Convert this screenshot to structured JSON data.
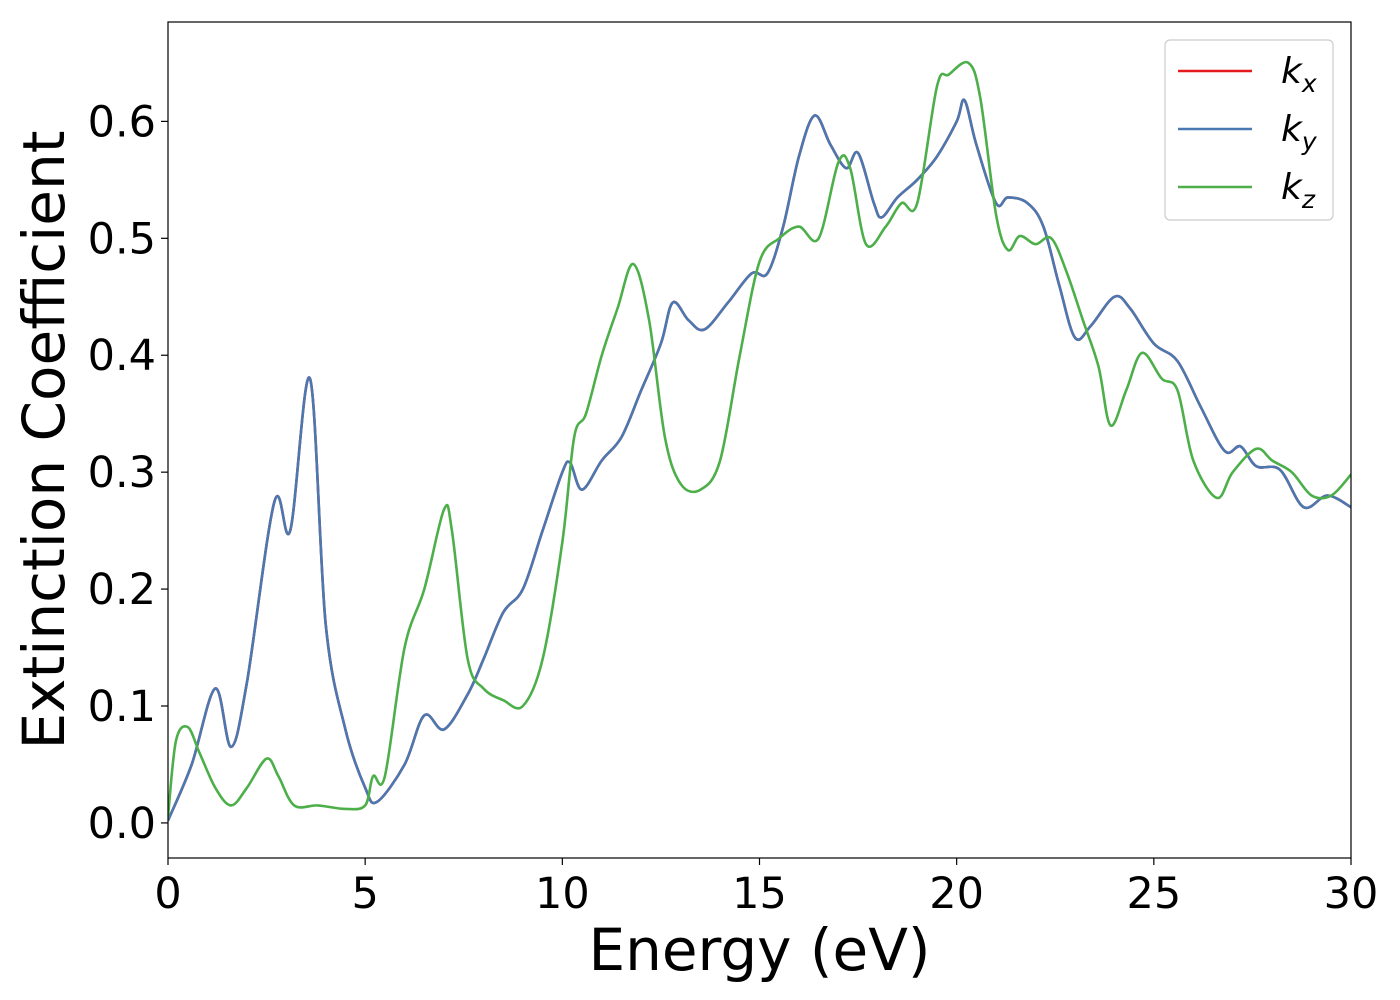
{
  "chart_data": {
    "type": "line",
    "title": "",
    "xlabel": "Energy (eV)",
    "ylabel": "Extinction Coefficient",
    "xlim": [
      0,
      30
    ],
    "ylim": [
      -0.03,
      0.685
    ],
    "xticks": [
      0,
      5,
      10,
      15,
      20,
      25,
      30
    ],
    "xtick_labels": [
      "0",
      "5",
      "10",
      "15",
      "20",
      "25",
      "30"
    ],
    "yticks": [
      0.0,
      0.1,
      0.2,
      0.3,
      0.4,
      0.5,
      0.6
    ],
    "ytick_labels": [
      "0.0",
      "0.1",
      "0.2",
      "0.3",
      "0.4",
      "0.5",
      "0.6"
    ],
    "grid": false,
    "legend": {
      "placement": "top-right",
      "entries": [
        {
          "base": "k",
          "sub": "x",
          "color": "#e41a1c"
        },
        {
          "base": "k",
          "sub": "y",
          "color": "#4a78b0"
        },
        {
          "base": "k",
          "sub": "z",
          "color": "#4daf4a"
        }
      ]
    },
    "series": [
      {
        "name": "kx",
        "color": "#e41a1c",
        "x": [
          0,
          0.6,
          1.2,
          1.6,
          2.0,
          2.7,
          3.1,
          3.6,
          4.0,
          4.5,
          5.0,
          5.3,
          6.0,
          6.5,
          7.0,
          7.6,
          8.0,
          8.5,
          9.0,
          9.5,
          10.0,
          10.2,
          10.5,
          11.0,
          11.5,
          12.0,
          12.5,
          12.8,
          13.2,
          13.6,
          14.2,
          14.8,
          15.2,
          15.6,
          16.0,
          16.4,
          16.8,
          17.2,
          17.5,
          17.9,
          18.1,
          18.5,
          19.0,
          19.5,
          20.0,
          20.2,
          20.5,
          21.0,
          21.3,
          21.8,
          22.2,
          22.6,
          23.0,
          23.4,
          24.0,
          24.4,
          25.0,
          25.6,
          26.2,
          26.8,
          27.2,
          27.6,
          28.2,
          28.8,
          29.4,
          30.0
        ],
        "y": [
          0.002,
          0.05,
          0.115,
          0.065,
          0.12,
          0.275,
          0.25,
          0.38,
          0.17,
          0.08,
          0.03,
          0.018,
          0.05,
          0.092,
          0.08,
          0.11,
          0.14,
          0.18,
          0.2,
          0.25,
          0.3,
          0.308,
          0.285,
          0.31,
          0.33,
          0.37,
          0.41,
          0.445,
          0.43,
          0.422,
          0.445,
          0.47,
          0.47,
          0.51,
          0.57,
          0.605,
          0.58,
          0.56,
          0.573,
          0.53,
          0.518,
          0.535,
          0.55,
          0.57,
          0.6,
          0.618,
          0.58,
          0.53,
          0.535,
          0.53,
          0.51,
          0.46,
          0.415,
          0.425,
          0.45,
          0.44,
          0.41,
          0.395,
          0.355,
          0.318,
          0.322,
          0.305,
          0.302,
          0.27,
          0.28,
          0.27
        ]
      },
      {
        "name": "ky",
        "color": "#4a78b0",
        "x": [
          0,
          0.6,
          1.2,
          1.6,
          2.0,
          2.7,
          3.1,
          3.6,
          4.0,
          4.5,
          5.0,
          5.3,
          6.0,
          6.5,
          7.0,
          7.6,
          8.0,
          8.5,
          9.0,
          9.5,
          10.0,
          10.2,
          10.5,
          11.0,
          11.5,
          12.0,
          12.5,
          12.8,
          13.2,
          13.6,
          14.2,
          14.8,
          15.2,
          15.6,
          16.0,
          16.4,
          16.8,
          17.2,
          17.5,
          17.9,
          18.1,
          18.5,
          19.0,
          19.5,
          20.0,
          20.2,
          20.5,
          21.0,
          21.3,
          21.8,
          22.2,
          22.6,
          23.0,
          23.4,
          24.0,
          24.4,
          25.0,
          25.6,
          26.2,
          26.8,
          27.2,
          27.6,
          28.2,
          28.8,
          29.4,
          30.0
        ],
        "y": [
          0.002,
          0.05,
          0.115,
          0.065,
          0.12,
          0.275,
          0.25,
          0.38,
          0.17,
          0.08,
          0.03,
          0.018,
          0.05,
          0.092,
          0.08,
          0.11,
          0.14,
          0.18,
          0.2,
          0.25,
          0.3,
          0.308,
          0.285,
          0.31,
          0.33,
          0.37,
          0.41,
          0.445,
          0.43,
          0.422,
          0.445,
          0.47,
          0.47,
          0.51,
          0.57,
          0.605,
          0.58,
          0.56,
          0.573,
          0.53,
          0.518,
          0.535,
          0.55,
          0.57,
          0.6,
          0.618,
          0.58,
          0.53,
          0.535,
          0.53,
          0.51,
          0.46,
          0.415,
          0.425,
          0.45,
          0.44,
          0.41,
          0.395,
          0.355,
          0.318,
          0.322,
          0.305,
          0.302,
          0.27,
          0.28,
          0.27
        ]
      },
      {
        "name": "kz",
        "color": "#4daf4a",
        "x": [
          0,
          0.2,
          0.5,
          0.8,
          1.2,
          1.6,
          2.0,
          2.5,
          2.8,
          3.2,
          3.8,
          4.5,
          5.0,
          5.2,
          5.5,
          6.0,
          6.5,
          7.0,
          7.2,
          7.6,
          8.0,
          8.5,
          9.0,
          9.5,
          10.0,
          10.3,
          10.6,
          11.0,
          11.4,
          11.8,
          12.2,
          12.6,
          13.0,
          13.5,
          14.0,
          14.5,
          15.0,
          15.5,
          16.0,
          16.5,
          17.0,
          17.3,
          17.7,
          18.2,
          18.6,
          19.0,
          19.5,
          19.8,
          20.3,
          20.6,
          21.0,
          21.3,
          21.6,
          22.0,
          22.4,
          22.8,
          23.2,
          23.6,
          23.9,
          24.3,
          24.7,
          25.2,
          25.6,
          26.0,
          26.6,
          27.0,
          27.6,
          28.0,
          28.5,
          29.0,
          29.5,
          30.0
        ],
        "y": [
          0.005,
          0.07,
          0.082,
          0.06,
          0.03,
          0.015,
          0.03,
          0.055,
          0.04,
          0.015,
          0.015,
          0.012,
          0.015,
          0.04,
          0.04,
          0.15,
          0.2,
          0.268,
          0.25,
          0.14,
          0.115,
          0.105,
          0.1,
          0.14,
          0.24,
          0.33,
          0.35,
          0.4,
          0.44,
          0.478,
          0.43,
          0.33,
          0.29,
          0.285,
          0.31,
          0.4,
          0.48,
          0.5,
          0.51,
          0.5,
          0.565,
          0.56,
          0.495,
          0.51,
          0.53,
          0.53,
          0.63,
          0.64,
          0.65,
          0.62,
          0.52,
          0.49,
          0.502,
          0.495,
          0.5,
          0.47,
          0.43,
          0.39,
          0.34,
          0.37,
          0.402,
          0.38,
          0.37,
          0.31,
          0.278,
          0.3,
          0.32,
          0.31,
          0.3,
          0.28,
          0.28,
          0.298
        ]
      }
    ]
  }
}
